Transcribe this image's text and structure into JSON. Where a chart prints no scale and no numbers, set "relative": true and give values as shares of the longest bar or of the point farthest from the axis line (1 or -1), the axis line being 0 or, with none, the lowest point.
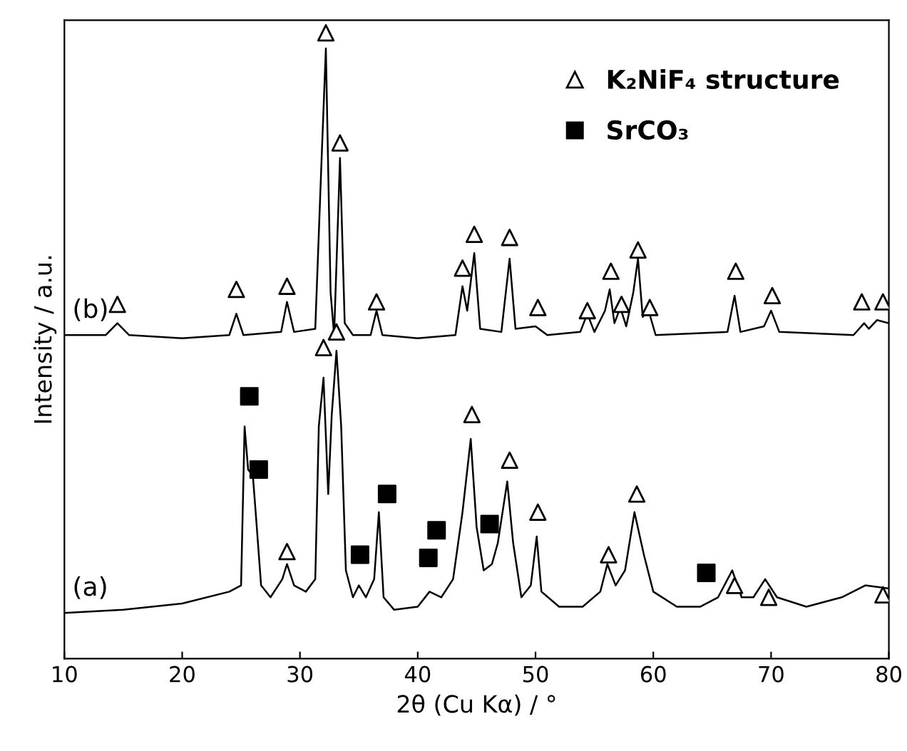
{
  "chart_data": {
    "type": "line",
    "xlabel": "2θ (Cu Kα) / °",
    "ylabel": "Intensity / a.u.",
    "relative": true,
    "xlim": [
      10,
      80
    ],
    "xticks": [
      10,
      20,
      30,
      40,
      50,
      60,
      70,
      80
    ],
    "grid": false,
    "legend": "top right",
    "series": [
      {
        "name": "(b)",
        "color": "#000000",
        "marker": "none",
        "x": [
          10,
          13.5,
          14.5,
          15.5,
          20,
          24,
          24.6,
          25.2,
          28.4,
          28.9,
          29.5,
          31.3,
          31.8,
          32.2,
          32.6,
          32.9,
          33.4,
          33.8,
          34.5,
          36.0,
          36.5,
          37,
          40,
          43.2,
          43.8,
          44.2,
          44.8,
          45.3,
          47.1,
          47.8,
          48.3,
          50.0,
          51,
          53.8,
          54.4,
          55,
          55.9,
          56.3,
          56.7,
          57.2,
          57.7,
          58.3,
          58.7,
          59.1,
          59.6,
          60.2,
          66.3,
          66.9,
          67.4,
          69.4,
          70.0,
          70.7,
          77,
          77.9,
          78.3,
          79,
          80
        ],
        "values": [
          0.517,
          0.517,
          0.536,
          0.517,
          0.512,
          0.517,
          0.551,
          0.517,
          0.522,
          0.57,
          0.522,
          0.527,
          0.78,
          0.975,
          0.585,
          0.517,
          0.8,
          0.536,
          0.517,
          0.517,
          0.556,
          0.517,
          0.512,
          0.517,
          0.595,
          0.556,
          0.648,
          0.527,
          0.522,
          0.639,
          0.527,
          0.531,
          0.517,
          0.522,
          0.551,
          0.522,
          0.556,
          0.59,
          0.536,
          0.561,
          0.531,
          0.585,
          0.639,
          0.546,
          0.556,
          0.517,
          0.522,
          0.58,
          0.522,
          0.531,
          0.556,
          0.522,
          0.517,
          0.536,
          0.527,
          0.541,
          0.536
        ]
      },
      {
        "name": "(a)",
        "color": "#000000",
        "marker": "none",
        "x": [
          10,
          15,
          20,
          24,
          25.0,
          25.3,
          25.6,
          26.0,
          26.3,
          26.7,
          27.5,
          28.5,
          28.9,
          29.5,
          30.5,
          31.3,
          31.6,
          32.0,
          32.4,
          32.7,
          33.1,
          33.5,
          33.9,
          34.5,
          35.0,
          35.6,
          36.3,
          36.7,
          37.1,
          38,
          40,
          41,
          42,
          43,
          43.8,
          44.5,
          45.0,
          45.6,
          46.3,
          46.8,
          47.6,
          48.1,
          48.8,
          49.6,
          50.1,
          50.5,
          52,
          54,
          55.5,
          56.1,
          56.8,
          57.6,
          58.4,
          59.2,
          60,
          62,
          64,
          65.5,
          66.7,
          67.5,
          68.5,
          69.5,
          70.5,
          73,
          76,
          78,
          80
        ],
        "values": [
          0.073,
          0.078,
          0.088,
          0.107,
          0.117,
          0.371,
          0.302,
          0.293,
          0.219,
          0.117,
          0.098,
          0.127,
          0.151,
          0.117,
          0.107,
          0.127,
          0.371,
          0.449,
          0.263,
          0.39,
          0.492,
          0.371,
          0.141,
          0.098,
          0.117,
          0.098,
          0.127,
          0.234,
          0.098,
          0.078,
          0.083,
          0.107,
          0.098,
          0.127,
          0.234,
          0.351,
          0.21,
          0.141,
          0.151,
          0.185,
          0.283,
          0.185,
          0.098,
          0.117,
          0.195,
          0.107,
          0.083,
          0.083,
          0.107,
          0.151,
          0.117,
          0.141,
          0.234,
          0.166,
          0.107,
          0.083,
          0.083,
          0.098,
          0.141,
          0.098,
          0.098,
          0.127,
          0.098,
          0.083,
          0.098,
          0.117,
          0.112
        ]
      },
      {
        "name": "K₂NiF₄ structure",
        "type": "scatter",
        "color": "#000000",
        "marker": "triangle",
        "x": [
          14.5,
          24.6,
          28.9,
          32.2,
          33.4,
          36.5,
          43.8,
          44.8,
          47.8,
          50.2,
          54.4,
          56.4,
          57.3,
          58.7,
          59.7,
          67.0,
          70.1,
          77.7,
          79.5,
          28.9,
          32.0,
          33.1,
          44.6,
          47.8,
          50.2,
          56.2,
          58.6,
          66.9,
          69.8,
          79.5
        ],
        "values": [
          0.566,
          0.59,
          0.595,
          1.0,
          0.824,
          0.57,
          0.624,
          0.678,
          0.673,
          0.561,
          0.556,
          0.619,
          0.566,
          0.653,
          0.561,
          0.619,
          0.58,
          0.57,
          0.57,
          0.171,
          0.497,
          0.522,
          0.39,
          0.317,
          0.234,
          0.166,
          0.263,
          0.117,
          0.098,
          0.102
        ]
      },
      {
        "name": "SrCO₃",
        "type": "scatter",
        "color": "#000000",
        "marker": "square",
        "x": [
          25.7,
          26.5,
          35.1,
          37.4,
          40.9,
          41.6,
          46.1,
          64.5
        ],
        "values": [
          0.419,
          0.302,
          0.166,
          0.263,
          0.161,
          0.205,
          0.215,
          0.137
        ]
      }
    ]
  }
}
